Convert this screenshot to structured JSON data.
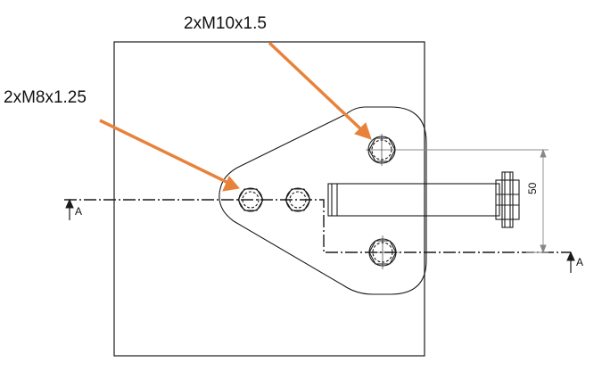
{
  "callouts": {
    "m10": "2xM10x1.5",
    "m8": "2xM8x1.25"
  },
  "section": {
    "left_label": "A",
    "right_label": "A"
  },
  "dimension": {
    "value": "50"
  },
  "colors": {
    "leader": "#E8823A",
    "line": "#1a1a1a",
    "dim": "#888888"
  }
}
